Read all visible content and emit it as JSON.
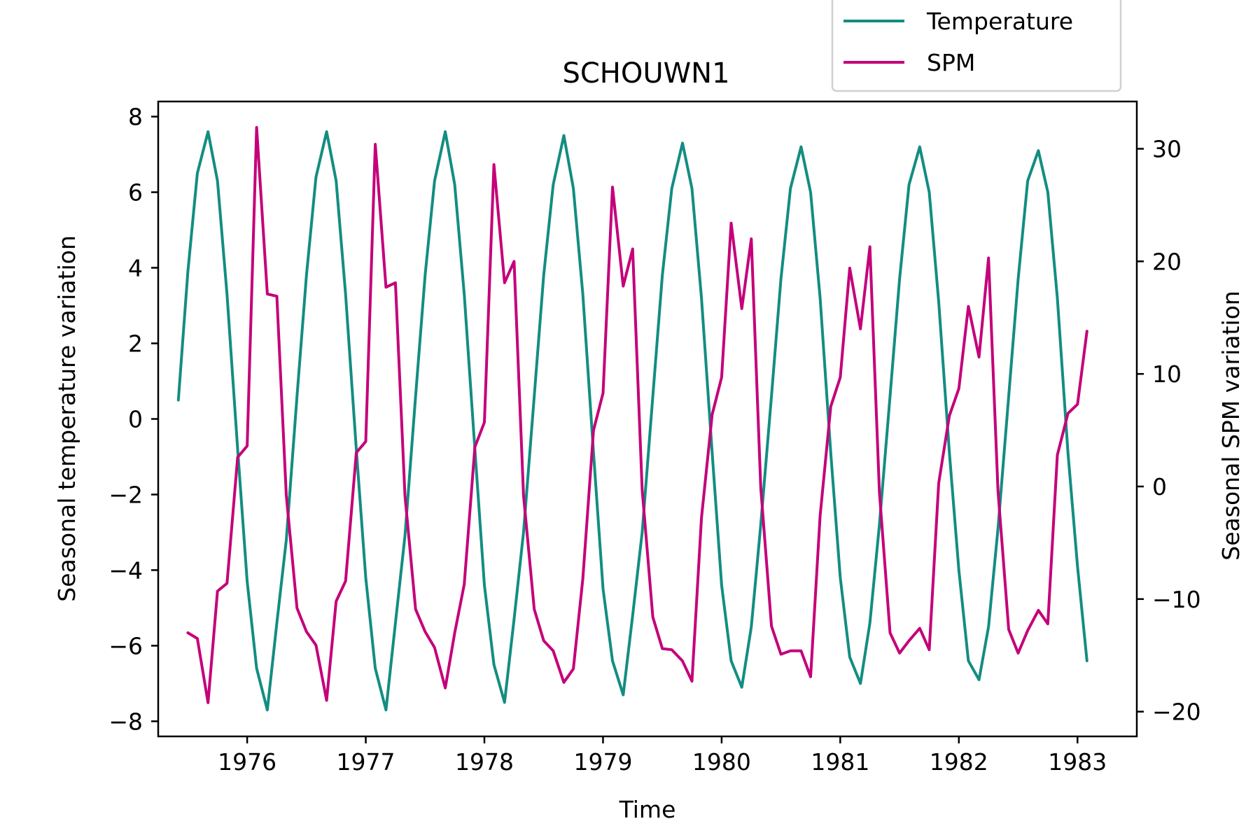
{
  "chart_data": {
    "type": "line",
    "title": "SCHOUWN1",
    "xlabel": "Time",
    "ylabel_left": "Seasonal temperature variation",
    "ylabel_right": "Seasonal SPM variation",
    "xlim": [
      1975.25,
      1983.5
    ],
    "ylim_left": [
      -8.4,
      8.4
    ],
    "ylim_right": [
      -22.2,
      34.2
    ],
    "xticks": [
      1976,
      1977,
      1978,
      1979,
      1980,
      1981,
      1982,
      1983
    ],
    "xtick_labels": [
      "1976",
      "1977",
      "1978",
      "1979",
      "1980",
      "1981",
      "1982",
      "1983"
    ],
    "yticks_left": [
      8,
      6,
      4,
      2,
      0,
      -2,
      -4,
      -6,
      -8
    ],
    "ytick_labels_left": [
      "8",
      "6",
      "4",
      "2",
      "0",
      "−2",
      "−4",
      "−6",
      "−8"
    ],
    "yticks_right": [
      30,
      20,
      10,
      0,
      -10,
      -20
    ],
    "ytick_labels_right": [
      "30",
      "20",
      "10",
      "0",
      "−10",
      "−20"
    ],
    "grid": false,
    "legend_position": "top-right, outside above plot",
    "series": [
      {
        "name": "Temperature",
        "axis": "left",
        "color": "#138d82",
        "x": [
          1975.42,
          1975.5,
          1975.58,
          1975.67,
          1975.75,
          1975.83,
          1975.92,
          1976.0,
          1976.08,
          1976.17,
          1976.25,
          1976.33,
          1976.42,
          1976.5,
          1976.58,
          1976.67,
          1976.75,
          1976.83,
          1976.92,
          1977.0,
          1977.08,
          1977.17,
          1977.25,
          1977.33,
          1977.42,
          1977.5,
          1977.58,
          1977.67,
          1977.75,
          1977.83,
          1977.92,
          1978.0,
          1978.08,
          1978.17,
          1978.25,
          1978.33,
          1978.42,
          1978.5,
          1978.58,
          1978.67,
          1978.75,
          1978.83,
          1978.92,
          1979.0,
          1979.08,
          1979.17,
          1979.25,
          1979.33,
          1979.42,
          1979.5,
          1979.58,
          1979.67,
          1979.75,
          1979.83,
          1979.92,
          1980.0,
          1980.08,
          1980.17,
          1980.25,
          1980.33,
          1980.42,
          1980.5,
          1980.58,
          1980.67,
          1980.75,
          1980.83,
          1980.92,
          1981.0,
          1981.08,
          1981.17,
          1981.25,
          1981.33,
          1981.42,
          1981.5,
          1981.58,
          1981.67,
          1981.75,
          1981.83,
          1981.92,
          1982.0,
          1982.08,
          1982.17,
          1982.25,
          1982.33,
          1982.42,
          1982.5,
          1982.58,
          1982.67,
          1982.75,
          1982.83,
          1982.92,
          1983.0,
          1983.08
        ],
        "y": [
          0.5,
          3.9,
          6.5,
          7.6,
          6.3,
          3.3,
          -0.8,
          -4.3,
          -6.6,
          -7.7,
          -5.4,
          -3.2,
          0.6,
          3.8,
          6.4,
          7.6,
          6.3,
          3.3,
          -0.8,
          -4.2,
          -6.6,
          -7.7,
          -5.4,
          -3.1,
          0.6,
          3.8,
          6.3,
          7.6,
          6.2,
          3.3,
          -0.8,
          -4.4,
          -6.5,
          -7.5,
          -5.3,
          -3.0,
          0.6,
          3.8,
          6.2,
          7.5,
          6.1,
          3.3,
          -0.9,
          -4.5,
          -6.4,
          -7.3,
          -5.2,
          -3.0,
          0.6,
          3.8,
          6.1,
          7.3,
          6.1,
          3.2,
          -0.9,
          -4.4,
          -6.4,
          -7.1,
          -5.5,
          -2.8,
          0.6,
          3.7,
          6.1,
          7.2,
          6.0,
          3.2,
          -0.9,
          -4.2,
          -6.3,
          -7.0,
          -5.4,
          -2.8,
          0.6,
          3.7,
          6.2,
          7.2,
          6.0,
          3.1,
          -0.9,
          -4.0,
          -6.4,
          -6.9,
          -5.5,
          -2.9,
          0.6,
          3.7,
          6.3,
          7.1,
          6.0,
          3.2,
          -0.9,
          -3.9,
          -6.4
        ]
      },
      {
        "name": "SPM",
        "axis": "right",
        "color": "#c4007a",
        "x": [
          1975.5,
          1975.58,
          1975.67,
          1975.75,
          1975.83,
          1975.92,
          1976.0,
          1976.08,
          1976.17,
          1976.25,
          1976.33,
          1976.42,
          1976.5,
          1976.58,
          1976.67,
          1976.75,
          1976.83,
          1976.92,
          1977.0,
          1977.08,
          1977.17,
          1977.25,
          1977.33,
          1977.42,
          1977.5,
          1977.58,
          1977.67,
          1977.75,
          1977.83,
          1977.92,
          1978.0,
          1978.08,
          1978.17,
          1978.25,
          1978.33,
          1978.42,
          1978.5,
          1978.58,
          1978.67,
          1978.75,
          1978.83,
          1978.92,
          1979.0,
          1979.08,
          1979.17,
          1979.25,
          1979.33,
          1979.42,
          1979.5,
          1979.58,
          1979.67,
          1979.75,
          1979.83,
          1979.92,
          1980.0,
          1980.08,
          1980.17,
          1980.25,
          1980.33,
          1980.42,
          1980.5,
          1980.58,
          1980.67,
          1980.75,
          1980.83,
          1980.92,
          1981.0,
          1981.08,
          1981.17,
          1981.25,
          1981.33,
          1981.42,
          1981.5,
          1981.58,
          1981.67,
          1981.75,
          1981.83,
          1981.92,
          1982.0,
          1982.08,
          1982.17,
          1982.25,
          1982.33,
          1982.42,
          1982.5,
          1982.58,
          1982.67,
          1982.75,
          1982.83,
          1982.92,
          1983.0,
          1983.08
        ],
        "y": [
          -13.0,
          -13.5,
          -19.2,
          -9.3,
          -8.6,
          2.6,
          3.6,
          31.9,
          17.1,
          16.9,
          -0.8,
          -10.8,
          -12.9,
          -14.1,
          -19.0,
          -10.2,
          -8.4,
          3.0,
          4.0,
          30.4,
          17.7,
          18.1,
          -0.8,
          -10.9,
          -12.9,
          -14.3,
          -17.9,
          -13.0,
          -8.7,
          3.5,
          5.7,
          28.6,
          18.1,
          20.0,
          -0.8,
          -10.9,
          -13.7,
          -14.6,
          -17.4,
          -16.2,
          -8.2,
          5.0,
          8.3,
          26.6,
          17.8,
          21.1,
          -0.3,
          -11.6,
          -14.4,
          -14.5,
          -15.5,
          -17.3,
          -2.8,
          6.4,
          9.7,
          23.4,
          15.8,
          22.0,
          -0.1,
          -12.4,
          -14.9,
          -14.6,
          -14.6,
          -16.9,
          -2.6,
          7.1,
          9.7,
          19.4,
          14.0,
          21.3,
          -0.5,
          -13.0,
          -14.8,
          -13.7,
          -12.6,
          -14.5,
          0.3,
          6.3,
          8.7,
          16.0,
          11.5,
          20.3,
          -0.4,
          -12.7,
          -14.8,
          -12.8,
          -11.0,
          -12.2,
          2.8,
          6.5,
          7.3,
          13.8
        ]
      }
    ]
  }
}
